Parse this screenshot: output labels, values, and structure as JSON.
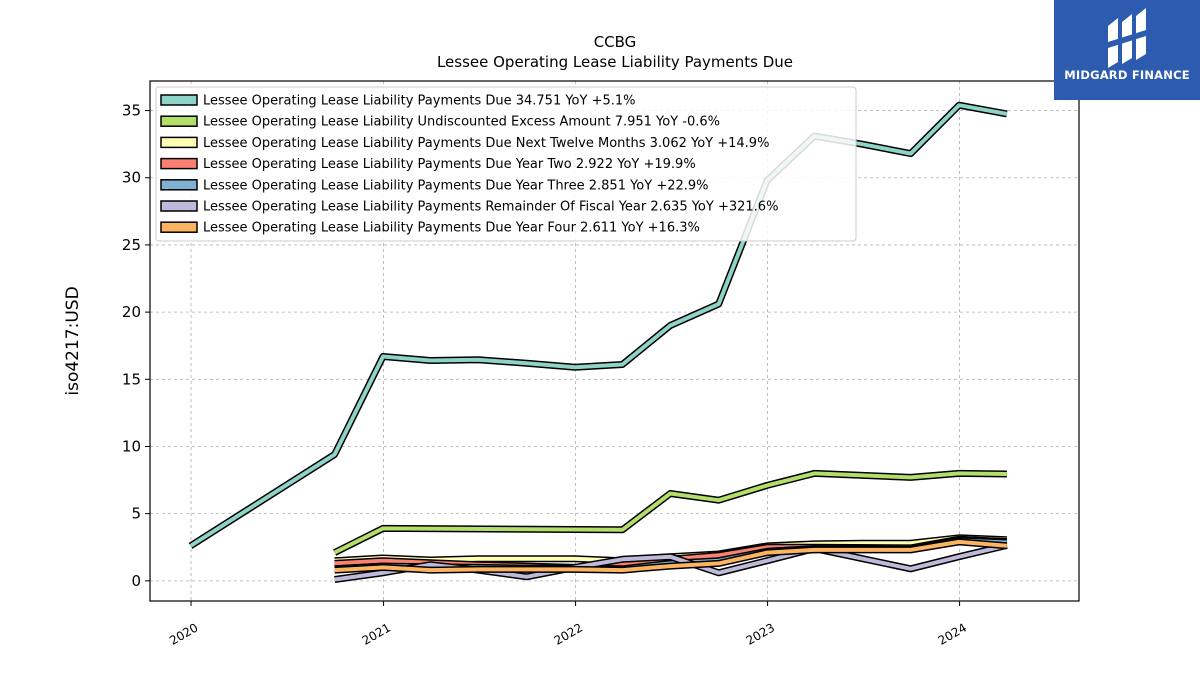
{
  "logo": {
    "text": "MIDGARD FINANCE",
    "background": "#2d5bb0"
  },
  "chart_data": {
    "type": "line",
    "title": "CCBG",
    "subtitle": "Lessee Operating Lease Liability Payments Due",
    "ylabel": "iso4217:USD",
    "xlabel": "",
    "ylim": [
      -1.5,
      37.2
    ],
    "xlim": [
      "2019-10-15",
      "2024-08-15"
    ],
    "yticks": [
      0,
      5,
      10,
      15,
      20,
      25,
      30,
      35
    ],
    "xticks": [
      "2020",
      "2021",
      "2022",
      "2023",
      "2024"
    ],
    "grid": true,
    "legend_position": "top-left",
    "series": [
      {
        "name": "Lessee Operating Lease Liability Payments Due  34.751 YoY +5.1%",
        "color": "#8dd3c7",
        "points": [
          [
            "2019-12-31",
            2.6
          ],
          [
            "2020-09-30",
            9.4
          ],
          [
            "2020-12-31",
            16.7
          ],
          [
            "2021-03-31",
            16.4
          ],
          [
            "2021-06-30",
            16.45
          ],
          [
            "2021-09-30",
            16.2
          ],
          [
            "2021-12-31",
            15.9
          ],
          [
            "2022-03-31",
            16.1
          ],
          [
            "2022-06-30",
            19.0
          ],
          [
            "2022-09-30",
            20.6
          ],
          [
            "2022-12-31",
            29.8
          ],
          [
            "2023-03-31",
            33.1
          ],
          [
            "2023-06-30",
            32.5
          ],
          [
            "2023-09-30",
            31.8
          ],
          [
            "2023-12-31",
            35.4
          ],
          [
            "2024-03-31",
            34.751
          ]
        ]
      },
      {
        "name": "Lessee Operating Lease Liability Undiscounted Excess Amount  7.951 YoY -0.6%",
        "color": "#b3de69",
        "points": [
          [
            "2020-09-30",
            2.1
          ],
          [
            "2020-12-31",
            3.9
          ],
          [
            "2022-03-31",
            3.8
          ],
          [
            "2022-06-30",
            6.5
          ],
          [
            "2022-09-30",
            6.0
          ],
          [
            "2022-12-31",
            7.1
          ],
          [
            "2023-03-31",
            8.0
          ],
          [
            "2023-09-30",
            7.7
          ],
          [
            "2023-12-31",
            8.0
          ],
          [
            "2024-03-31",
            7.951
          ]
        ]
      },
      {
        "name": "Lessee Operating Lease Liability Payments Due Next Twelve Months  3.062 YoY +14.9%",
        "color": "#ffffb3",
        "points": [
          [
            "2020-09-30",
            1.5
          ],
          [
            "2020-12-31",
            1.7
          ],
          [
            "2021-03-31",
            1.55
          ],
          [
            "2021-06-30",
            1.65
          ],
          [
            "2021-09-30",
            1.65
          ],
          [
            "2021-12-31",
            1.65
          ],
          [
            "2022-03-31",
            1.5
          ],
          [
            "2022-06-30",
            1.8
          ],
          [
            "2022-09-30",
            2.0
          ],
          [
            "2022-12-31",
            2.6
          ],
          [
            "2023-03-31",
            2.75
          ],
          [
            "2023-06-30",
            2.8
          ],
          [
            "2023-09-30",
            2.8
          ],
          [
            "2023-12-31",
            3.2
          ],
          [
            "2024-03-31",
            3.062
          ]
        ]
      },
      {
        "name": "Lessee Operating Lease Liability Payments Due Year Two  2.922 YoY +19.9%",
        "color": "#fb8072",
        "points": [
          [
            "2020-09-30",
            1.3
          ],
          [
            "2020-12-31",
            1.5
          ],
          [
            "2021-06-30",
            1.2
          ],
          [
            "2021-09-30",
            1.1
          ],
          [
            "2021-12-31",
            1.0
          ],
          [
            "2022-03-31",
            1.2
          ],
          [
            "2022-06-30",
            1.6
          ],
          [
            "2022-09-30",
            1.9
          ],
          [
            "2022-12-31",
            2.5
          ],
          [
            "2023-03-31",
            2.5
          ],
          [
            "2023-09-30",
            2.45
          ],
          [
            "2023-12-31",
            3.1
          ],
          [
            "2024-03-31",
            2.922
          ]
        ]
      },
      {
        "name": "Lessee Operating Lease Liability Payments Due Year Three  2.851 YoY +22.9%",
        "color": "#80b1d3",
        "points": [
          [
            "2020-09-30",
            0.9
          ],
          [
            "2020-12-31",
            1.1
          ],
          [
            "2021-06-30",
            1.0
          ],
          [
            "2021-09-30",
            0.95
          ],
          [
            "2021-12-31",
            0.95
          ],
          [
            "2022-03-31",
            0.9
          ],
          [
            "2022-06-30",
            1.3
          ],
          [
            "2022-09-30",
            1.5
          ],
          [
            "2022-12-31",
            2.2
          ],
          [
            "2023-03-31",
            2.4
          ],
          [
            "2023-09-30",
            2.35
          ],
          [
            "2023-12-31",
            3.0
          ],
          [
            "2024-03-31",
            2.851
          ]
        ]
      },
      {
        "name": "Lessee Operating Lease Liability Payments Remainder Of Fiscal Year  2.635 YoY +321.6%",
        "color": "#bebada",
        "points": [
          [
            "2020-09-30",
            0.1
          ],
          [
            "2020-12-31",
            0.6
          ],
          [
            "2021-03-31",
            1.2
          ],
          [
            "2021-06-30",
            0.8
          ],
          [
            "2021-09-30",
            0.3
          ],
          [
            "2021-12-31",
            1.0
          ],
          [
            "2022-03-31",
            1.6
          ],
          [
            "2022-06-30",
            1.8
          ],
          [
            "2022-09-30",
            0.6
          ],
          [
            "2022-12-31",
            1.5
          ],
          [
            "2023-03-31",
            2.4
          ],
          [
            "2023-09-30",
            0.9
          ],
          [
            "2023-12-31",
            1.8
          ],
          [
            "2024-03-31",
            2.635
          ]
        ]
      },
      {
        "name": "Lessee Operating Lease Liability Payments Due Year Four  2.611 YoY +16.3%",
        "color": "#fdb462",
        "points": [
          [
            "2020-09-30",
            0.8
          ],
          [
            "2020-12-31",
            1.0
          ],
          [
            "2021-03-31",
            0.8
          ],
          [
            "2021-06-30",
            0.85
          ],
          [
            "2021-09-30",
            0.85
          ],
          [
            "2021-12-31",
            0.85
          ],
          [
            "2022-03-31",
            0.8
          ],
          [
            "2022-06-30",
            1.1
          ],
          [
            "2022-09-30",
            1.3
          ],
          [
            "2022-12-31",
            2.1
          ],
          [
            "2023-03-31",
            2.3
          ],
          [
            "2023-09-30",
            2.3
          ],
          [
            "2023-12-31",
            2.9
          ],
          [
            "2024-03-31",
            2.611
          ]
        ]
      }
    ]
  }
}
